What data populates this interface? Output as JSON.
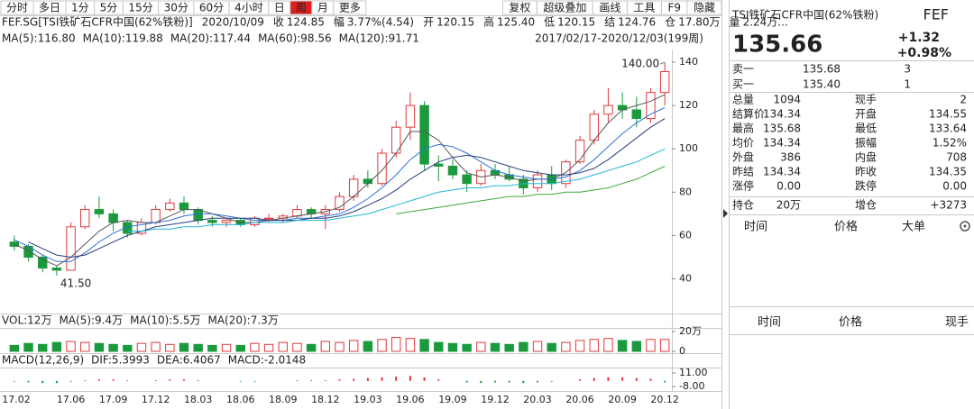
{
  "toolbar": {
    "left": [
      "分时",
      "多日",
      "1分",
      "5分",
      "15分",
      "30分",
      "60分",
      "4小时",
      "日",
      "周",
      "月",
      "更多"
    ],
    "selected": 9,
    "right": [
      "复权",
      "超级叠加",
      "画线",
      "工具",
      "F9",
      "隐藏"
    ],
    "disabled": 0
  },
  "info": [
    {
      "text": "FEF.SG[TSI铁矿石CFR中国(62%铁粉)]",
      "color": "#222"
    },
    {
      "text": "2020/10/09",
      "color": "#222"
    },
    {
      "text": "收",
      "color": "#222"
    },
    {
      "text": "124.85",
      "color": "#e02020"
    },
    {
      "text": "幅",
      "color": "#222"
    },
    {
      "text": "3.77%(4.54)",
      "color": "#e02020"
    },
    {
      "text": "开",
      "color": "#222"
    },
    {
      "text": "120.15",
      "color": "#1a9a3c"
    },
    {
      "text": "高",
      "color": "#222"
    },
    {
      "text": "125.40",
      "color": "#e02020"
    },
    {
      "text": "低",
      "color": "#222"
    },
    {
      "text": "120.15",
      "color": "#1a9a3c"
    },
    {
      "text": "结",
      "color": "#222"
    },
    {
      "text": "124.76",
      "color": "#e02020"
    },
    {
      "text": "仓",
      "color": "#222"
    },
    {
      "text": "17.80万",
      "color": "#222"
    },
    {
      "text": "量",
      "color": "#222"
    },
    {
      "text": "2.24万...",
      "color": "#222"
    }
  ],
  "range_label": "2017/02/17-2020/12/03(199周)",
  "chart_data": {
    "type": "candlestick",
    "categories": [
      "17.02",
      null,
      null,
      null,
      "17.06",
      null,
      null,
      "17.09",
      null,
      null,
      "17.12",
      null,
      null,
      "18.03",
      null,
      null,
      "18.06",
      null,
      null,
      "18.09",
      null,
      null,
      "18.12",
      null,
      null,
      "19.03",
      null,
      null,
      "19.06",
      null,
      null,
      "19.09",
      null,
      null,
      "19.12",
      null,
      null,
      "20.03",
      null,
      null,
      "20.06",
      null,
      null,
      "20.09",
      null,
      null,
      "20.12"
    ],
    "open": [
      57,
      55,
      50,
      45,
      44,
      64,
      72,
      70,
      66,
      61,
      66,
      72,
      75,
      72,
      67,
      66,
      67,
      65,
      68,
      68,
      69,
      72,
      70,
      72,
      78,
      86,
      84,
      98,
      110,
      120,
      93,
      92,
      88,
      84,
      90,
      88,
      86,
      82,
      88,
      84,
      94,
      104,
      116,
      120,
      118,
      114,
      126
    ],
    "high": [
      60,
      56,
      51,
      46,
      66,
      74,
      78,
      72,
      67,
      68,
      74,
      77,
      78,
      73,
      69,
      68,
      68,
      69,
      70,
      70,
      74,
      73,
      74,
      80,
      88,
      90,
      100,
      113,
      126,
      122,
      97,
      95,
      90,
      93,
      93,
      92,
      88,
      90,
      92,
      95,
      106,
      118,
      128,
      126,
      124,
      128,
      140
    ],
    "low": [
      53,
      48,
      43,
      41.5,
      44,
      63,
      68,
      62,
      59,
      60,
      65,
      71,
      70,
      65,
      64,
      64,
      64,
      64,
      66,
      66,
      68,
      68,
      63,
      71,
      76,
      82,
      83,
      96,
      104,
      90,
      85,
      86,
      80,
      83,
      86,
      85,
      79,
      80,
      81,
      82,
      93,
      102,
      112,
      114,
      110,
      112,
      120
    ],
    "close": [
      55,
      50,
      45,
      44,
      64,
      72,
      70,
      66,
      61,
      66,
      72,
      75,
      72,
      67,
      66,
      67,
      65,
      68,
      68,
      69,
      72,
      70,
      72,
      78,
      86,
      84,
      98,
      110,
      120,
      93,
      92,
      88,
      84,
      90,
      88,
      86,
      82,
      88,
      84,
      94,
      104,
      116,
      120,
      118,
      114,
      126,
      135.66
    ],
    "max_label": "140.00",
    "min_label": "41.50",
    "ylim": [
      24,
      145
    ],
    "yticks": [
      40,
      60,
      80,
      100,
      120,
      140
    ],
    "up_color": "#e0393e",
    "down_color": "#1a9a3c",
    "ma": [
      {
        "label": "MA(5):116.80",
        "color": "#555555",
        "values": [
          56,
          53,
          49,
          46,
          50,
          56,
          62,
          66,
          67,
          66,
          66,
          69,
          72,
          72,
          70,
          68,
          66,
          66,
          67,
          68,
          69,
          70,
          71,
          73,
          78,
          84,
          90,
          98,
          108,
          108,
          104,
          96,
          89,
          87,
          88,
          87,
          85,
          86,
          86,
          89,
          95,
          104,
          112,
          118,
          120,
          122,
          125
        ]
      },
      {
        "label": "MA(10):119.88",
        "color": "#2f6fd6",
        "values": [
          58,
          55,
          51,
          48,
          48,
          52,
          57,
          61,
          64,
          65,
          66,
          67,
          69,
          70,
          70,
          69,
          68,
          67,
          67,
          67,
          68,
          68,
          69,
          70,
          73,
          77,
          82,
          88,
          95,
          100,
          102,
          101,
          98,
          94,
          90,
          88,
          87,
          86,
          86,
          87,
          90,
          95,
          101,
          107,
          112,
          116,
          119
        ]
      },
      {
        "label": "MA(20):117.44",
        "color": "#27407a",
        "values": [
          null,
          57,
          54,
          51,
          50,
          51,
          54,
          57,
          60,
          62,
          64,
          65,
          66,
          67,
          68,
          68,
          68,
          68,
          67,
          67,
          67,
          68,
          68,
          69,
          71,
          74,
          77,
          81,
          86,
          90,
          94,
          96,
          97,
          96,
          94,
          92,
          90,
          89,
          88,
          88,
          89,
          91,
          95,
          100,
          105,
          110,
          114
        ]
      },
      {
        "label": "MA(60):98.56",
        "color": "#22b5d6",
        "values": [
          null,
          null,
          null,
          null,
          null,
          null,
          null,
          null,
          62,
          62,
          63,
          63,
          64,
          64,
          65,
          65,
          65,
          66,
          66,
          66,
          67,
          67,
          67,
          68,
          69,
          70,
          72,
          74,
          76,
          78,
          80,
          81,
          82,
          82,
          83,
          83,
          84,
          84,
          84,
          85,
          86,
          88,
          90,
          92,
          94,
          97,
          100
        ]
      },
      {
        "label": "MA(120):91.71",
        "color": "#3aa83a",
        "values": [
          null,
          null,
          null,
          null,
          null,
          null,
          null,
          null,
          null,
          null,
          null,
          null,
          null,
          null,
          null,
          null,
          null,
          null,
          null,
          null,
          null,
          null,
          null,
          null,
          null,
          null,
          null,
          70,
          71,
          72,
          73,
          74,
          75,
          76,
          77,
          78,
          78,
          79,
          79,
          80,
          80,
          81,
          82,
          84,
          86,
          89,
          92
        ]
      }
    ],
    "volume": {
      "legend": [
        {
          "text": "VOL:12万",
          "color": "#222"
        },
        {
          "text": "MA(5):9.4万",
          "color": "#555555"
        },
        {
          "text": "MA(10):5.5万",
          "color": "#e0393e"
        },
        {
          "text": "MA(20):7.3万",
          "color": "#2f6fd6"
        }
      ],
      "values": [
        6,
        8,
        7,
        9,
        10,
        9,
        8,
        7,
        6,
        8,
        9,
        7,
        8,
        7,
        6,
        7,
        6,
        8,
        7,
        9,
        8,
        7,
        10,
        9,
        11,
        10,
        12,
        14,
        13,
        12,
        9,
        8,
        7,
        9,
        8,
        7,
        9,
        10,
        8,
        9,
        11,
        12,
        13,
        11,
        10,
        12,
        12
      ],
      "ylim": [
        0,
        20
      ],
      "yticks": [
        {
          "value": 20,
          "label": "20万"
        },
        0
      ]
    },
    "macd": {
      "legend": [
        {
          "text": "MACD(12,26,9)",
          "color": "#222"
        },
        {
          "text": "DIF:5.3993",
          "color": "#555555"
        },
        {
          "text": "DEA:6.4067",
          "color": "#e0393e"
        },
        {
          "text": "MACD:-2.0148",
          "color": "#1a9a3c"
        }
      ],
      "values": [
        -1,
        -2,
        -3,
        -3,
        -1,
        1,
        2,
        2,
        1,
        0,
        1,
        2,
        2,
        1,
        0,
        0,
        -1,
        -1,
        0,
        0,
        1,
        1,
        1,
        2,
        3,
        4,
        5,
        6,
        7,
        5,
        2,
        0,
        -2,
        -3,
        -2,
        -2,
        -3,
        -2,
        -1,
        0,
        2,
        4,
        5,
        5,
        4,
        3,
        -2.0148
      ],
      "ylim": [
        -14,
        16
      ],
      "yticks": [
        {
          "value": 11,
          "label": "11.00"
        },
        {
          "value": -8,
          "label": "-8.00"
        }
      ]
    }
  },
  "panel": {
    "name": "TSI铁矿石CFR中国(62%铁粉)",
    "code": "FEF",
    "price": "135.66",
    "change": "+1.32",
    "change_pct": "+0.98%",
    "book": [
      [
        "卖一",
        "135.68",
        "3"
      ],
      [
        "买一",
        "135.40",
        "1"
      ]
    ],
    "stats": [
      [
        {
          "text": "总量",
          "color": "#222"
        },
        {
          "text": "1094",
          "color": "#222"
        },
        {
          "text": "现手",
          "color": "#222"
        },
        {
          "text": "2",
          "color": "#222"
        }
      ],
      [
        {
          "text": "结算价",
          "color": "#222"
        },
        {
          "text": "134.34",
          "color": "#222"
        },
        {
          "text": "开盘",
          "color": "#222"
        },
        {
          "text": "134.55",
          "color": "#e02020"
        }
      ],
      [
        {
          "text": "最高",
          "color": "#222"
        },
        {
          "text": "135.68",
          "color": "#e02020"
        },
        {
          "text": "最低",
          "color": "#222"
        },
        {
          "text": "133.64",
          "color": "#1a9a3c"
        }
      ],
      [
        {
          "text": "均价",
          "color": "#222"
        },
        {
          "text": "134.34",
          "color": "#222"
        },
        {
          "text": "振幅",
          "color": "#222"
        },
        {
          "text": "1.52%",
          "color": "#222"
        }
      ],
      [
        {
          "text": "外盘",
          "color": "#222"
        },
        {
          "text": "386",
          "color": "#e02020"
        },
        {
          "text": "内盘",
          "color": "#222"
        },
        {
          "text": "708",
          "color": "#1a9a3c"
        }
      ],
      [
        {
          "text": "昨结",
          "color": "#222"
        },
        {
          "text": "134.34",
          "color": "#222"
        },
        {
          "text": "昨收",
          "color": "#222"
        },
        {
          "text": "134.35",
          "color": "#222"
        }
      ],
      [
        {
          "text": "涨停",
          "color": "#222"
        },
        {
          "text": "0.00",
          "color": "#e02020"
        },
        {
          "text": "跌停",
          "color": "#222"
        },
        {
          "text": "0.00",
          "color": "#1a9a3c"
        }
      ]
    ],
    "position": [
      {
        "text": "持仓",
        "color": "#222"
      },
      {
        "text": "20万",
        "color": "#222"
      },
      {
        "text": "增仓",
        "color": "#222"
      },
      {
        "text": "+3273",
        "color": "#e02020"
      }
    ],
    "trades_header": [
      "时间",
      "价格",
      "大单"
    ],
    "ticks_header": [
      "时间",
      "价格",
      "现手"
    ]
  }
}
